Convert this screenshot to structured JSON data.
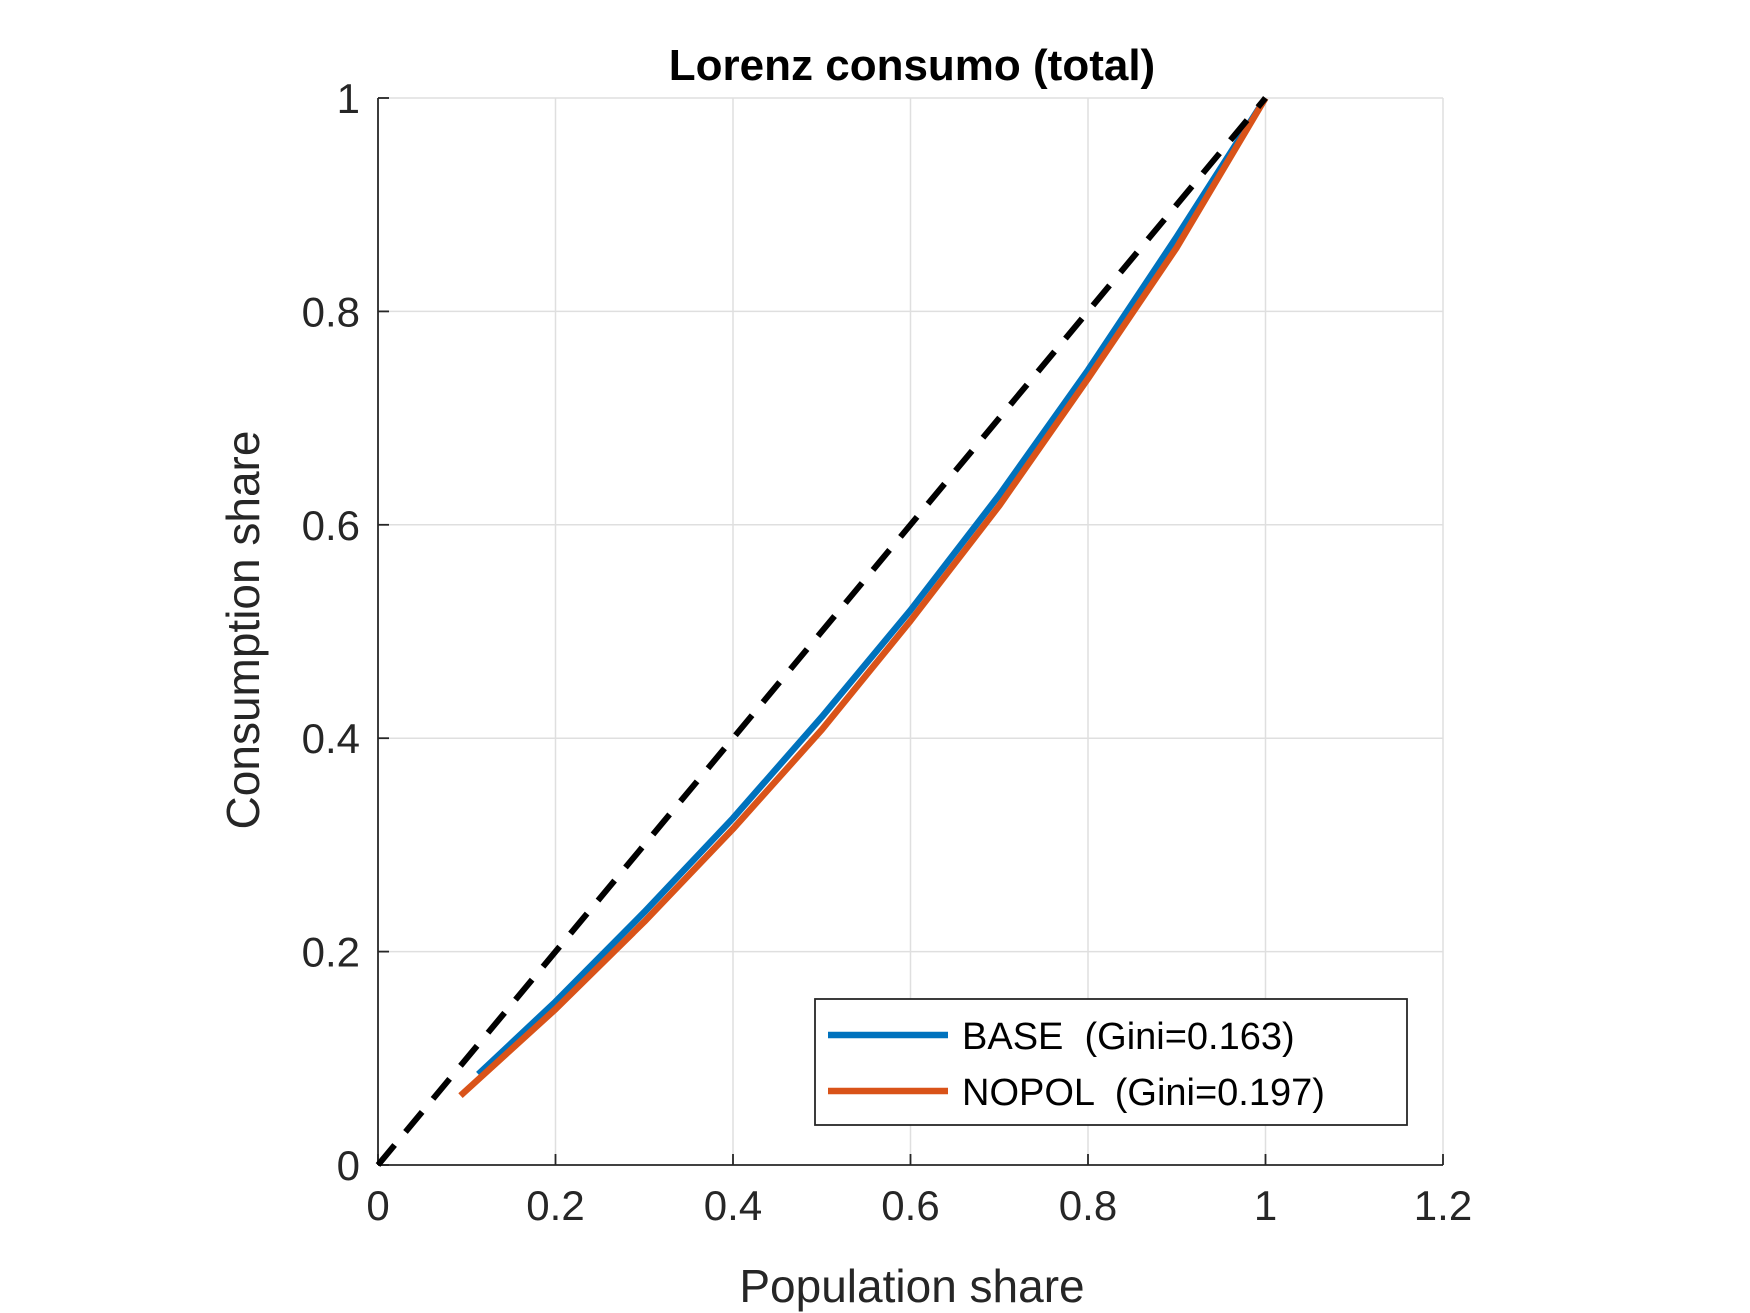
{
  "chart_data": {
    "type": "line",
    "title": "Lorenz consumo (total)",
    "xlabel": "Population share",
    "ylabel": "Consumption share",
    "xlim": [
      0,
      1.2
    ],
    "ylim": [
      0,
      1
    ],
    "xticks": [
      0,
      0.2,
      0.4,
      0.6,
      0.8,
      1,
      1.2
    ],
    "yticks": [
      0,
      0.2,
      0.4,
      0.6,
      0.8,
      1
    ],
    "xtick_labels": [
      "0",
      "0.2",
      "0.4",
      "0.6",
      "0.8",
      "1",
      "1.2"
    ],
    "ytick_labels": [
      "0",
      "0.2",
      "0.4",
      "0.6",
      "0.8",
      "1"
    ],
    "grid": true,
    "box": "left-bottom axes only",
    "legend_position": "bottom-right",
    "series": [
      {
        "name": "BASE  (Gini=0.163)",
        "color": "#0072BD",
        "style": "solid",
        "x": [
          0.113,
          0.2,
          0.3,
          0.4,
          0.5,
          0.6,
          0.7,
          0.8,
          0.9,
          1.0
        ],
        "y": [
          0.085,
          0.153,
          0.237,
          0.325,
          0.42,
          0.52,
          0.628,
          0.745,
          0.87,
          1.0
        ]
      },
      {
        "name": "NOPOL  (Gini=0.197)",
        "color": "#D95319",
        "style": "solid",
        "x": [
          0.093,
          0.2,
          0.3,
          0.4,
          0.5,
          0.6,
          0.7,
          0.8,
          0.9,
          1.0
        ],
        "y": [
          0.065,
          0.146,
          0.228,
          0.315,
          0.408,
          0.51,
          0.618,
          0.737,
          0.86,
          1.0
        ]
      },
      {
        "name": "",
        "color": "#000000",
        "style": "dashed",
        "x": [
          0,
          1
        ],
        "y": [
          0,
          1
        ]
      }
    ]
  }
}
